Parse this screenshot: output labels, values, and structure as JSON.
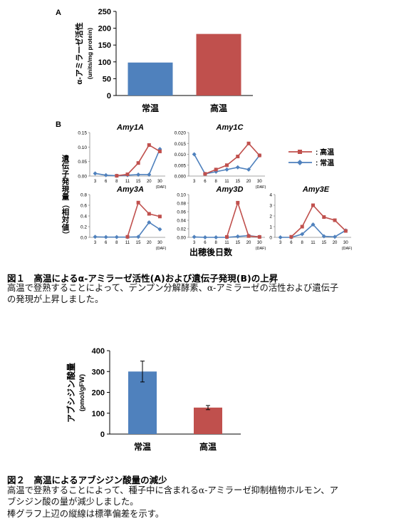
{
  "figure1": {
    "caption_title": "図１　高温によるα-アミラーゼ活性(A)および遺伝子発現(B)の上昇",
    "caption_lines": [
      "高温で登熟することによって、デンプン分解酵素、α-アミラーゼの活性および遺伝子",
      "の発現が上昇しました。"
    ]
  },
  "figure2": {
    "caption_title": "図２　高温によるアブシジン酸量の減少",
    "caption_lines": [
      "高温で登熟することによって、種子中に含まれるα-アミラーゼ抑制植物ホルモン、ア",
      "ブシジン酸の量が減少しました。",
      "棒グラフ上辺の縦線は標準偏差を示す。"
    ]
  },
  "colors": {
    "normal": "#4f81bd",
    "high": "#c0504d"
  },
  "chart_data": [
    {
      "id": "A",
      "type": "bar",
      "panel_label": "A",
      "categories": [
        "常温",
        "高温"
      ],
      "values": [
        98,
        183
      ],
      "colors": [
        "#4f81bd",
        "#c0504d"
      ],
      "ylabel": "α-アミラーゼ活性",
      "ylabel_unit": "(units/mg protein)",
      "ylim": [
        0,
        250
      ],
      "yticks": [
        0,
        50,
        100,
        150,
        200,
        250
      ],
      "grid": false
    },
    {
      "id": "B",
      "type": "line",
      "panel_label": "B",
      "ylabel": "遺伝子発現量（相対値）",
      "xlabel": "出穂後日数",
      "x": [
        3,
        6,
        8,
        11,
        15,
        20,
        30
      ],
      "x_unit": "(DAF)",
      "legend": [
        {
          "name": "高温",
          "label": ": 高温",
          "color": "#c0504d",
          "marker": "square"
        },
        {
          "name": "常温",
          "label": ": 常温",
          "color": "#4f81bd",
          "marker": "diamond"
        }
      ],
      "legend_position": "right",
      "panels": [
        {
          "title": "Amy1A",
          "ylim": [
            0,
            0.15
          ],
          "yticks": [
            "0.00",
            "0.05",
            "0.10",
            "0.15"
          ],
          "series": [
            {
              "name": "常温",
              "values": [
                0.009,
                0.003,
                0.001,
                0.003,
                0.005,
                0.005,
                0.093
              ]
            },
            {
              "name": "高温",
              "values": [
                null,
                null,
                0.001,
                0.006,
                0.045,
                0.107,
                0.085
              ]
            }
          ]
        },
        {
          "title": "Amy1C",
          "ylim": [
            0,
            0.02
          ],
          "yticks": [
            "0.000",
            "0.005",
            "0.010",
            "0.015",
            "0.020"
          ],
          "series": [
            {
              "name": "常温",
              "values": [
                0.01,
                0.001,
                0.002,
                0.003,
                0.004,
                0.003,
                0.0095
              ]
            },
            {
              "name": "高温",
              "values": [
                null,
                0.001,
                0.003,
                0.005,
                0.009,
                0.015,
                0.0095
              ]
            }
          ]
        },
        {
          "title": "Amy3A",
          "ylim": [
            0,
            0.8
          ],
          "yticks": [
            "0.0",
            "0.2",
            "0.4",
            "0.6",
            "0.8"
          ],
          "series": [
            {
              "name": "常温",
              "values": [
                0.01,
                0.005,
                0.005,
                0.005,
                0.01,
                0.28,
                0.15
              ]
            },
            {
              "name": "高温",
              "values": [
                null,
                null,
                null,
                0.01,
                0.65,
                0.44,
                0.39
              ]
            }
          ]
        },
        {
          "title": "Amy3D",
          "ylim": [
            0,
            0.1
          ],
          "yticks": [
            "0.00",
            "0.02",
            "0.04",
            "0.06",
            "0.08",
            "0.10"
          ],
          "series": [
            {
              "name": "常温",
              "values": [
                0.001,
                0.0,
                0.0,
                0.0,
                0.002,
                0.004,
                0.001
              ]
            },
            {
              "name": "高温",
              "values": [
                null,
                null,
                null,
                0.001,
                0.081,
                0.003,
                0.001
              ]
            }
          ]
        },
        {
          "title": "Amy3E",
          "ylim": [
            0,
            4
          ],
          "yticks": [
            "0",
            "1",
            "2",
            "3",
            "4"
          ],
          "series": [
            {
              "name": "常温",
              "values": [
                0.0,
                0.0,
                0.3,
                1.2,
                0.1,
                0.05,
                0.65
              ]
            },
            {
              "name": "高温",
              "values": [
                null,
                0.05,
                1.0,
                3.0,
                1.9,
                1.6,
                0.6
              ]
            }
          ]
        }
      ]
    },
    {
      "id": "fig2",
      "type": "bar",
      "categories": [
        "常温",
        "高温"
      ],
      "values": [
        300,
        127
      ],
      "errors": [
        50,
        10
      ],
      "colors": [
        "#4f81bd",
        "#c0504d"
      ],
      "ylabel": "アブシジン酸量",
      "ylabel_unit": "(pmol/gFW)",
      "ylim": [
        0,
        400
      ],
      "yticks": [
        0,
        100,
        200,
        300,
        400
      ],
      "grid": false
    }
  ]
}
